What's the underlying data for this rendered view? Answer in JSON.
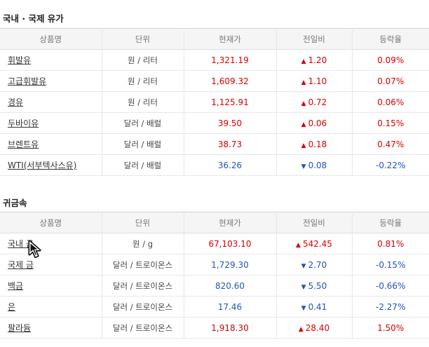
{
  "oil": {
    "title": "국내 · 국제 유가",
    "headers": [
      "상품명",
      "단위",
      "현재가",
      "전일비",
      "등락율"
    ],
    "rows": [
      {
        "name": "휘발유",
        "unit": "원 / 리터",
        "price": "1,321.19",
        "change": "1.20",
        "rate": "0.09%",
        "direction": "up"
      },
      {
        "name": "고급휘발유",
        "unit": "원 / 리터",
        "price": "1,609.32",
        "change": "1.10",
        "rate": "0.07%",
        "direction": "up"
      },
      {
        "name": "경유",
        "unit": "원 / 리터",
        "price": "1,125.91",
        "change": "0.72",
        "rate": "0.06%",
        "direction": "up"
      },
      {
        "name": "두바이유",
        "unit": "달러 / 배럴",
        "price": "39.50",
        "change": "0.06",
        "rate": "0.15%",
        "direction": "up"
      },
      {
        "name": "브렌트유",
        "unit": "달러 / 배럴",
        "price": "38.73",
        "change": "0.18",
        "rate": "0.47%",
        "direction": "up"
      },
      {
        "name": "WTI(서부텍사스유)",
        "unit": "달러 / 배럴",
        "price": "36.26",
        "change": "0.08",
        "rate": "-0.22%",
        "direction": "down"
      }
    ]
  },
  "metal": {
    "title": "귀금속",
    "headers": [
      "상품명",
      "단위",
      "현재가",
      "전일비",
      "등락율"
    ],
    "rows": [
      {
        "name": "국내 금",
        "unit": "원 / g",
        "price": "67,103.10",
        "change": "542.45",
        "rate": "0.81%",
        "direction": "up"
      },
      {
        "name": "국제 금",
        "unit": "달러 / 트로이온스",
        "price": "1,729.30",
        "change": "2.70",
        "rate": "-0.15%",
        "direction": "down"
      },
      {
        "name": "백금",
        "unit": "달러 / 트로이온스",
        "price": "820.60",
        "change": "5.50",
        "rate": "-0.66%",
        "direction": "down"
      },
      {
        "name": "은",
        "unit": "달러 / 트로이온스",
        "price": "17.46",
        "change": "0.41",
        "rate": "-2.27%",
        "direction": "down"
      },
      {
        "name": "팔라듐",
        "unit": "달러 / 트로이온스",
        "price": "1,918.30",
        "change": "28.40",
        "rate": "1.50%",
        "direction": "up"
      }
    ]
  },
  "icons": {
    "up": "triangle-up-icon",
    "down": "triangle-down-icon",
    "cursor": "mouse-pointer-icon"
  },
  "colors": {
    "up": "#d60000",
    "down": "#1e55b8"
  }
}
